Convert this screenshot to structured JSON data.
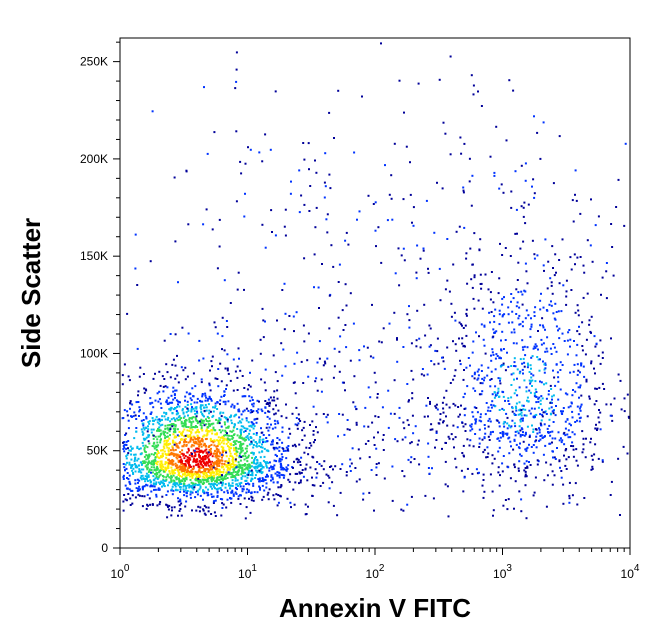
{
  "chart_data": {
    "type": "scatter",
    "style": "density",
    "xlabel": "Annexin V FITC",
    "ylabel": "Side Scatter",
    "xscale": "log",
    "xlim": [
      1,
      10000
    ],
    "ylim": [
      0,
      262144
    ],
    "x_ticks": [
      {
        "value": 1,
        "base": "10",
        "exp": "0"
      },
      {
        "value": 10,
        "base": "10",
        "exp": "1"
      },
      {
        "value": 100,
        "base": "10",
        "exp": "2"
      },
      {
        "value": 1000,
        "base": "10",
        "exp": "3"
      },
      {
        "value": 10000,
        "base": "10",
        "exp": "4"
      }
    ],
    "y_ticks": [
      {
        "value": 0,
        "label": "0"
      },
      {
        "value": 50000,
        "label": "50K"
      },
      {
        "value": 100000,
        "label": "100K"
      },
      {
        "value": 150000,
        "label": "150K"
      },
      {
        "value": 200000,
        "label": "200K"
      },
      {
        "value": 250000,
        "label": "250K"
      }
    ],
    "density_colors": [
      "#000099",
      "#0033ff",
      "#00bbee",
      "#33dd55",
      "#ffee00",
      "#ff7700",
      "#ee0000"
    ],
    "populations": [
      {
        "label": "",
        "x_center": 4,
        "y_center": 45000,
        "x_spread_decades": 0.38,
        "y_spread": 18000,
        "relative_density": "high"
      },
      {
        "label": "",
        "x_center": 1500,
        "y_center": 75000,
        "x_spread_decades": 0.35,
        "y_spread": 38000,
        "relative_density": "medium"
      },
      {
        "label": "",
        "x_center": 80,
        "y_center": 70000,
        "x_spread_decades": 1.0,
        "y_spread": 50000,
        "relative_density": "low"
      },
      {
        "label": "",
        "x_center": 300,
        "y_center": 190000,
        "x_spread_decades": 1.2,
        "y_spread": 45000,
        "relative_density": "sparse"
      }
    ]
  }
}
